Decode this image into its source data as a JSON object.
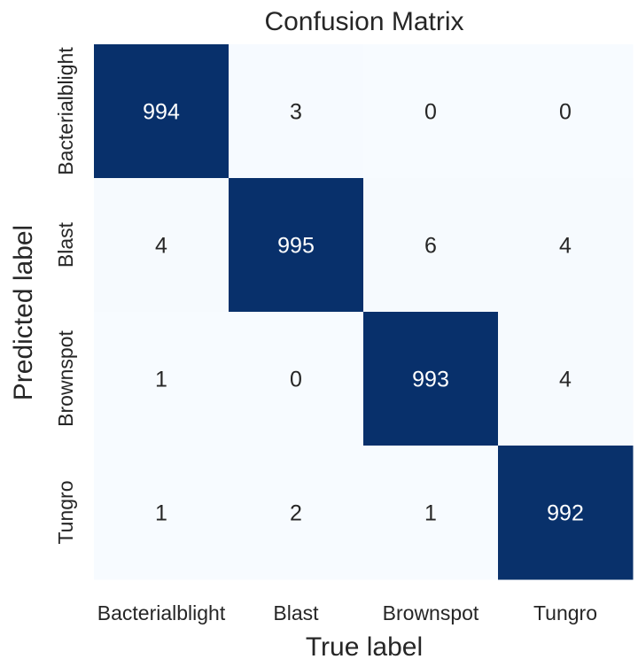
{
  "chart_data": {
    "type": "heatmap",
    "title": "Confusion Matrix",
    "xlabel": "True label",
    "ylabel": "Predicted label",
    "x_categories": [
      "Bacterialblight",
      "Blast",
      "Brownspot",
      "Tungro"
    ],
    "y_categories": [
      "Bacterialblight",
      "Blast",
      "Brownspot",
      "Tungro"
    ],
    "matrix": [
      [
        994,
        3,
        0,
        0
      ],
      [
        4,
        995,
        6,
        4
      ],
      [
        1,
        0,
        993,
        4
      ],
      [
        1,
        2,
        1,
        992
      ]
    ],
    "colormap": {
      "low": "#f7fbff",
      "high": "#08306b"
    },
    "colorbar": false,
    "grid": false
  }
}
